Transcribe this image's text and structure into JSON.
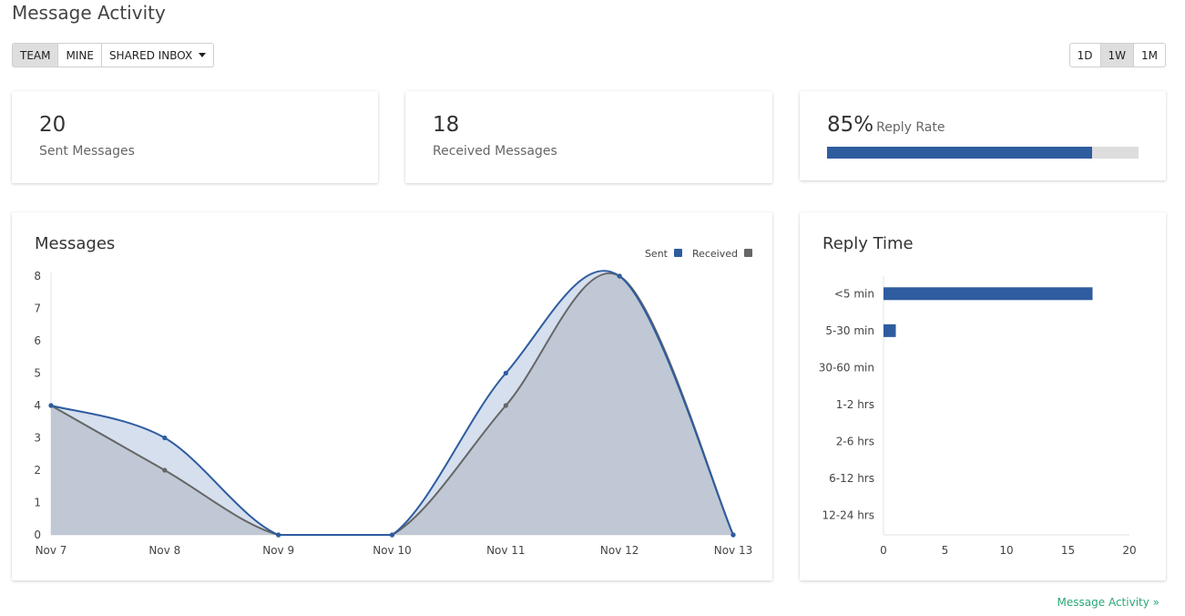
{
  "page_title": "Message Activity",
  "scope_buttons": [
    {
      "label": "TEAM",
      "active": true
    },
    {
      "label": "MINE",
      "active": false
    },
    {
      "label": "SHARED INBOX",
      "active": false,
      "dropdown": true
    }
  ],
  "range_buttons": [
    {
      "label": "1D",
      "active": false
    },
    {
      "label": "1W",
      "active": true
    },
    {
      "label": "1M",
      "active": false
    }
  ],
  "stats": {
    "sent": {
      "value": "20",
      "label": "Sent Messages"
    },
    "received": {
      "value": "18",
      "label": "Received Messages"
    },
    "reply_rate": {
      "value": "85%",
      "label": "Reply Rate",
      "percent": 85
    }
  },
  "messages_card": {
    "title": "Messages"
  },
  "reply_time_card": {
    "title": "Reply Time"
  },
  "footer_link": "Message Activity »",
  "colors": {
    "sent": "#2e5c9f",
    "received": "#666666",
    "received_fill": "#bfc8d4",
    "sent_fill": "#d5dfee",
    "track": "#dddddd",
    "link": "#2aa876"
  },
  "chart_data": [
    {
      "type": "area",
      "title": "Messages",
      "categories": [
        "Nov 7",
        "Nov 8",
        "Nov 9",
        "Nov 10",
        "Nov 11",
        "Nov 12",
        "Nov 13"
      ],
      "series": [
        {
          "name": "Sent",
          "values": [
            4,
            3,
            0,
            0,
            5,
            8,
            0
          ]
        },
        {
          "name": "Received",
          "values": [
            4,
            2,
            0,
            0,
            4,
            8,
            0
          ]
        }
      ],
      "yticks": [
        "0",
        "1",
        "2",
        "3",
        "4",
        "5",
        "6",
        "7",
        "8"
      ],
      "ylim": [
        0,
        8
      ],
      "legend": "top-right",
      "grid": false
    },
    {
      "type": "bar",
      "orientation": "horizontal",
      "title": "Reply Time",
      "categories": [
        "<5 min",
        "5-30 min",
        "30-60 min",
        "1-2 hrs",
        "2-6 hrs",
        "6-12 hrs",
        "12-24 hrs"
      ],
      "values": [
        17,
        1,
        0,
        0,
        0,
        0,
        0
      ],
      "xticks": [
        "0",
        "5",
        "10",
        "15",
        "20"
      ],
      "xlim": [
        0,
        20
      ],
      "grid": false
    }
  ]
}
